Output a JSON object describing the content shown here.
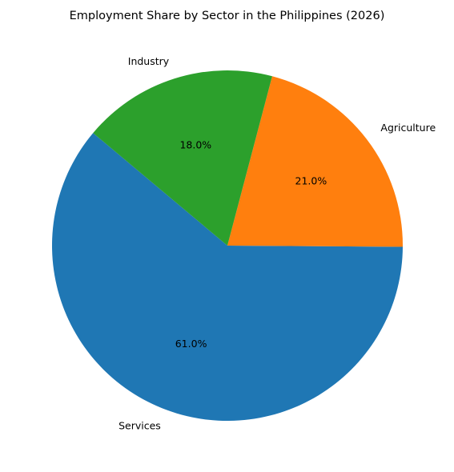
{
  "chart_data": {
    "type": "pie",
    "title": "Employment Share by Sector in the Philippines (2026)",
    "unit": "%",
    "start_angle_deg": 140,
    "direction": "counterclockwise",
    "slices": [
      {
        "label": "Services",
        "value": 61.0,
        "display": "61.0%",
        "color": "#1f77b4"
      },
      {
        "label": "Agriculture",
        "value": 21.0,
        "display": "21.0%",
        "color": "#ff7f0e"
      },
      {
        "label": "Industry",
        "value": 18.0,
        "display": "18.0%",
        "color": "#2ca02c"
      }
    ],
    "legend": "none"
  }
}
